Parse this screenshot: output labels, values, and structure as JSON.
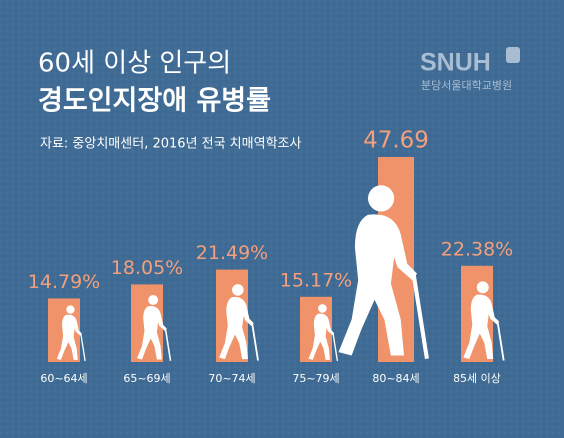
{
  "chart_data": {
    "type": "bar",
    "title": "60세 이상 인구의",
    "subtitle": "경도인지장애 유병률",
    "source": "자료: 중앙치매센터, 2016년 전국 치매역학조사",
    "logo": {
      "name": "SNUH",
      "hospital": "분당서울대학교병원"
    },
    "categories": [
      "60~64세",
      "65~69세",
      "70~74세",
      "75~79세",
      "80~84세",
      "85세 이상"
    ],
    "values": [
      14.79,
      18.05,
      21.49,
      15.17,
      47.69,
      22.38
    ],
    "value_labels": [
      "14.79%",
      "18.05%",
      "21.49%",
      "15.17%",
      "47.69",
      "22.38%"
    ],
    "color": "#f0936a",
    "label_color": "#f5a07c"
  }
}
